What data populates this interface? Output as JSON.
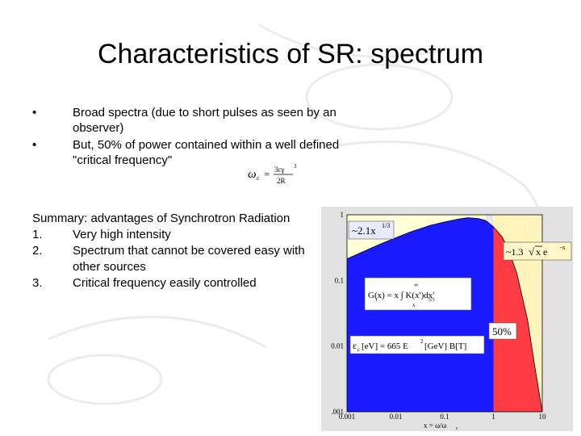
{
  "slide": {
    "title": "Characteristics of SR: spectrum",
    "bullets": [
      {
        "marker": "•",
        "text": "Broad spectra (due to short pulses as seen by an observer)"
      },
      {
        "marker": "•",
        "text": "But, 50% of power contained within a well defined \"critical frequency\""
      }
    ],
    "formula": {
      "lhs": "ω",
      "sub": "c",
      "eq": "=",
      "num": "3cγ",
      "num_exp": "3",
      "den": "2R"
    },
    "summary": {
      "heading": "Summary: advantages of Synchrotron Radiation",
      "items": [
        {
          "num": "1.",
          "text": "Very high intensity"
        },
        {
          "num": "2.",
          "text": "Spectrum that cannot be covered easy with other sources"
        },
        {
          "num": "3.",
          "text": "Critical frequency easily controlled"
        }
      ]
    }
  },
  "chart_data": {
    "type": "area",
    "x_scale": "log",
    "y_scale": "log",
    "xlim": [
      0.001,
      10
    ],
    "ylim": [
      0.001,
      1
    ],
    "xticks": [
      "0.001",
      "0.01",
      "0.1",
      "1",
      "10"
    ],
    "yticks": [
      "1",
      "0.1",
      "0.01",
      ".001"
    ],
    "xlabel": "x = ω/ω",
    "xlabel_sub": "c",
    "x": [
      0.001,
      0.002,
      0.005,
      0.01,
      0.02,
      0.05,
      0.1,
      0.2,
      0.3,
      0.5,
      0.7,
      1,
      1.5,
      2,
      3,
      5,
      7,
      10
    ],
    "y": [
      0.213,
      0.268,
      0.362,
      0.446,
      0.547,
      0.688,
      0.777,
      0.863,
      0.902,
      0.872,
      0.816,
      0.655,
      0.461,
      0.302,
      0.129,
      0.025,
      0.005,
      0.001
    ],
    "split_x": 1,
    "annotations": {
      "low": "~2.1x",
      "low_exp": "1/3",
      "high_pre": "~1.3",
      "high_mid": "x e",
      "high_exp": "-x",
      "integral": "G(x) = x ∫ K(x')dx'",
      "integral_sub1": "1",
      "integral_sub2": "5/3",
      "integral_upper": "∞",
      "integral_lower": "x",
      "critical_pre": "ε",
      "critical_sub": "c",
      "critical_body": "[eV] = 665 E",
      "critical_exp": "2",
      "critical_tail": "[GeV] B[T]",
      "percent": "50%"
    },
    "colors": {
      "low": "#1a1aff",
      "high": "#ff3b44",
      "bg_low": "#ffffd6",
      "bg_high": "#fff3b8",
      "frame": "#dcdcdc"
    }
  }
}
